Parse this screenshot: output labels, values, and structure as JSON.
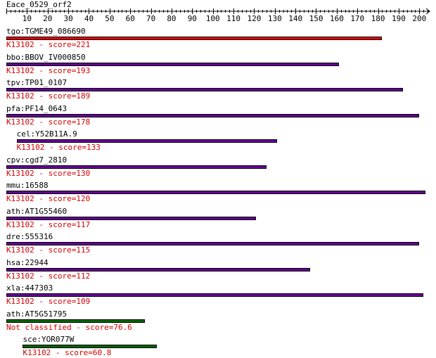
{
  "header": {
    "query_name": "Eace_0529_orf2",
    "axis_ticks": [
      "10",
      "20",
      "30",
      "40",
      "50",
      "60",
      "70",
      "80",
      "90",
      "100",
      "110",
      "120",
      "130",
      "140",
      "150",
      "160",
      "170",
      "180",
      "190",
      "200"
    ],
    "axis_max": 205
  },
  "colors": {
    "top_hit": "#ee0000",
    "hit": "#660099",
    "not_classified": "#006600",
    "score_text": "#d40000"
  },
  "hits": [
    {
      "name": "tgo:TGME49_086690",
      "label": "K13102 - score=221",
      "start": 1,
      "end": 182,
      "kind": "top_hit"
    },
    {
      "name": "bbo:BBOV_IV000850",
      "label": "K13102 - score=193",
      "start": 1,
      "end": 161,
      "kind": "hit"
    },
    {
      "name": "tpv:TP01_0107",
      "label": "K13102 - score=189",
      "start": 1,
      "end": 192,
      "kind": "hit"
    },
    {
      "name": "pfa:PF14_0643",
      "label": "K13102 - score=178",
      "start": 1,
      "end": 200,
      "kind": "hit"
    },
    {
      "name": "cel:Y52B11A.9",
      "label": "K13102 - score=133",
      "start": 6,
      "end": 131,
      "kind": "hit"
    },
    {
      "name": "cpv:cgd7_2810",
      "label": "K13102 - score=130",
      "start": 1,
      "end": 126,
      "kind": "hit"
    },
    {
      "name": "mmu:16588",
      "label": "K13102 - score=120",
      "start": 1,
      "end": 203,
      "kind": "hit"
    },
    {
      "name": "ath:AT1G55460",
      "label": "K13102 - score=117",
      "start": 1,
      "end": 121,
      "kind": "hit"
    },
    {
      "name": "dre:555316",
      "label": "K13102 - score=115",
      "start": 1,
      "end": 200,
      "kind": "hit"
    },
    {
      "name": "hsa:22944",
      "label": "K13102 - score=112",
      "start": 1,
      "end": 147,
      "kind": "hit"
    },
    {
      "name": "xla:447303",
      "label": "K13102 - score=109",
      "start": 1,
      "end": 202,
      "kind": "hit"
    },
    {
      "name": "ath:AT5G51795",
      "label": "Not classified - score=76.6",
      "start": 1,
      "end": 67,
      "kind": "not_classified"
    },
    {
      "name": "sce:YOR077W",
      "label": "K13102 - score=60.8",
      "start": 9,
      "end": 73,
      "kind": "not_classified"
    }
  ]
}
